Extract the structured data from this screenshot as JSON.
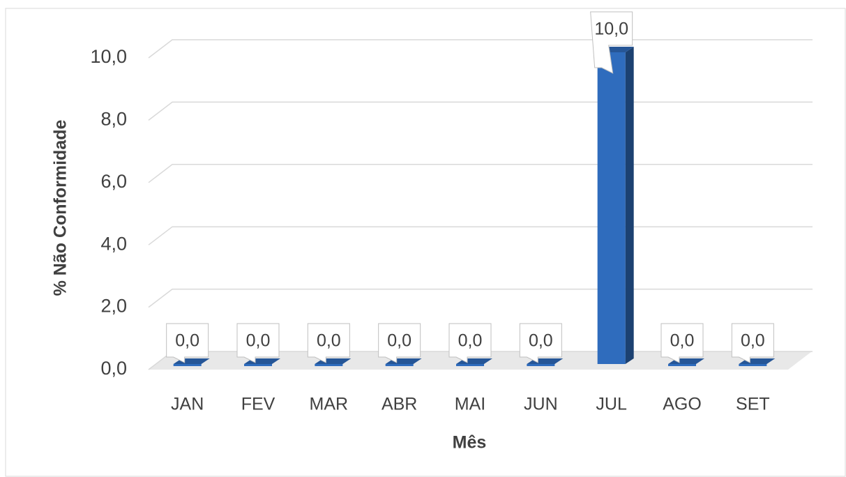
{
  "chart_data": {
    "type": "bar",
    "x_label": "Mês",
    "y_label": "% Não Conformidade",
    "categories": [
      "JAN",
      "FEV",
      "MAR",
      "ABR",
      "MAI",
      "JUN",
      "JUL",
      "AGO",
      "SET"
    ],
    "values": [
      0,
      0,
      0,
      0,
      0,
      0,
      10,
      0,
      0
    ],
    "value_labels": [
      "0,0",
      "0,0",
      "0,0",
      "0,0",
      "0,0",
      "0,0",
      "10,0",
      "0,0",
      "0,0"
    ],
    "color": "#2f6cbd",
    "ylim": [
      0,
      10
    ],
    "yticks": [
      {
        "value": 0,
        "label": "0,0"
      },
      {
        "value": 2,
        "label": "2,0"
      },
      {
        "value": 4,
        "label": "4,0"
      },
      {
        "value": 6,
        "label": "6,0"
      },
      {
        "value": 8,
        "label": "8,0"
      },
      {
        "value": 10,
        "label": "10,0"
      }
    ],
    "grid": true
  }
}
